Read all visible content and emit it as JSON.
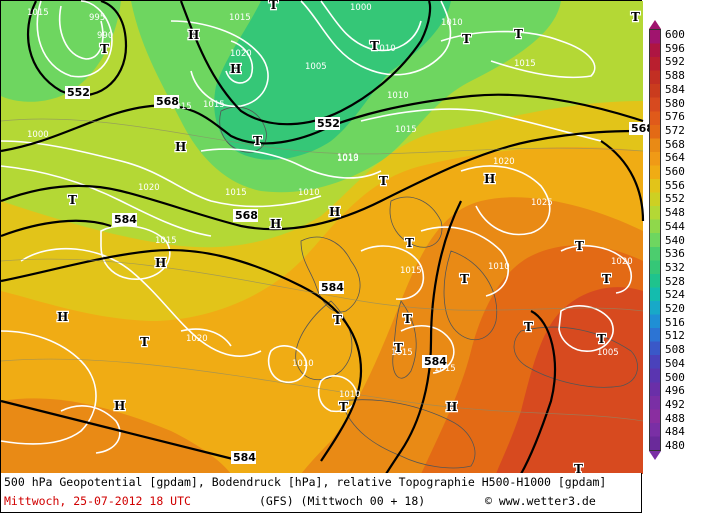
{
  "map": {
    "colors": {
      "deep_green": "#35c777",
      "green": "#6ed660",
      "yellow_green": "#b4d835",
      "yellow": "#e2c419",
      "light_orange": "#f0ac14",
      "orange": "#e98a15",
      "dark_orange": "#e36a15",
      "red_orange": "#d74a1f",
      "red": "#c22f23"
    },
    "pressure_labels": [
      "1015",
      "995",
      "990",
      "1015",
      "1020",
      "1000",
      "1010",
      "1010",
      "1005",
      "1015",
      "1015",
      "1015",
      "1010",
      "1000",
      "1015",
      "1010",
      "1013",
      "1015",
      "1010",
      "1020",
      "1020",
      "1025",
      "1015",
      "1015",
      "1010",
      "1020",
      "1010",
      "1010",
      "1015",
      "1015",
      "1020",
      "1005"
    ],
    "geopotential_labels": [
      "552",
      "568",
      "552",
      "568",
      "584",
      "584",
      "584",
      "584",
      "568"
    ],
    "pressure_systems": [
      {
        "type": "H"
      },
      {
        "type": "T"
      },
      {
        "type": "T"
      },
      {
        "type": "H"
      },
      {
        "type": "T"
      },
      {
        "type": "T"
      },
      {
        "type": "T"
      },
      {
        "type": "T"
      },
      {
        "type": "T"
      },
      {
        "type": "H"
      },
      {
        "type": "T"
      },
      {
        "type": "H"
      },
      {
        "type": "H"
      },
      {
        "type": "H"
      },
      {
        "type": "T"
      },
      {
        "type": "H"
      },
      {
        "type": "T"
      },
      {
        "type": "T"
      },
      {
        "type": "T"
      },
      {
        "type": "T"
      },
      {
        "type": "T"
      },
      {
        "type": "T"
      },
      {
        "type": "T"
      },
      {
        "type": "T"
      },
      {
        "type": "T"
      },
      {
        "type": "H"
      },
      {
        "type": "H"
      },
      {
        "type": "T"
      },
      {
        "type": "H"
      },
      {
        "type": "T"
      },
      {
        "type": "T"
      }
    ]
  },
  "legend": {
    "values": [
      "600",
      "596",
      "592",
      "588",
      "584",
      "580",
      "576",
      "572",
      "568",
      "564",
      "560",
      "556",
      "552",
      "548",
      "544",
      "540",
      "536",
      "532",
      "528",
      "524",
      "520",
      "516",
      "512",
      "508",
      "504",
      "500",
      "496",
      "492",
      "488",
      "484",
      "480"
    ],
    "colors": [
      "#a0146e",
      "#ae1542",
      "#b91f2f",
      "#c22f23",
      "#ca3c1e",
      "#d74a1f",
      "#e05a1a",
      "#e36a15",
      "#e98a15",
      "#f09a16",
      "#f0ac14",
      "#e2c419",
      "#cdd023",
      "#b4d835",
      "#8fd84b",
      "#6ed660",
      "#4ccd6e",
      "#35c777",
      "#1fc38d",
      "#14bcae",
      "#18a9c8",
      "#1f8fd5",
      "#2c74d4",
      "#3a58c8",
      "#4a42bb",
      "#5a35b0",
      "#6a2fa8",
      "#7a2fa5",
      "#8a2ea0",
      "#7a2fa5",
      "#6a2a9a"
    ]
  },
  "footer": {
    "line1": "500 hPa Geopotential [gpdam], Bodendruck [hPa], relative Topographie H500-H1000 [gpdam]",
    "date": "Mittwoch, 25-07-2012  18 UTC",
    "model": "(GFS)  (Mittwoch 00 + 18)",
    "copyright": "© www.wetter3.de"
  }
}
